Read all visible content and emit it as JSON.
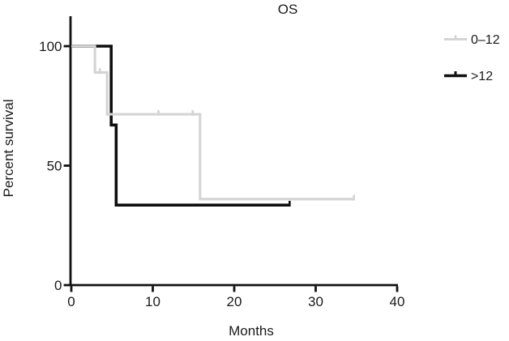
{
  "chart_data": {
    "type": "line",
    "subtype": "kaplan-meier-step",
    "title": "OS",
    "xlabel": "Months",
    "ylabel": "Percent survival",
    "xlim": [
      0,
      40
    ],
    "ylim": [
      0,
      100
    ],
    "xticks": [
      0,
      10,
      20,
      30,
      40
    ],
    "yticks": [
      0,
      50,
      100
    ],
    "grid": false,
    "legend_position": "top-right",
    "axis_color": "#111111",
    "series": [
      {
        "name": "0–12",
        "color": "#d4d4d4",
        "stroke_width": 3.1,
        "steps": [
          [
            0,
            100
          ],
          [
            2.9,
            100
          ],
          [
            2.9,
            89
          ],
          [
            4.4,
            89
          ],
          [
            4.4,
            71.5
          ],
          [
            15.8,
            71.5
          ],
          [
            15.8,
            36
          ],
          [
            34.7,
            36
          ]
        ],
        "censor_marks": [
          [
            3.5,
            89
          ],
          [
            10.7,
            71.5
          ],
          [
            14.9,
            71.5
          ],
          [
            34.7,
            36
          ]
        ]
      },
      {
        "name": ">12",
        "color": "#0f0f0f",
        "stroke_width": 3.6,
        "steps": [
          [
            0,
            100
          ],
          [
            4.9,
            100
          ],
          [
            4.9,
            67
          ],
          [
            5.5,
            67
          ],
          [
            5.5,
            33.5
          ],
          [
            26.8,
            33.5
          ]
        ],
        "censor_marks": [
          [
            26.8,
            33.5
          ]
        ]
      }
    ]
  }
}
